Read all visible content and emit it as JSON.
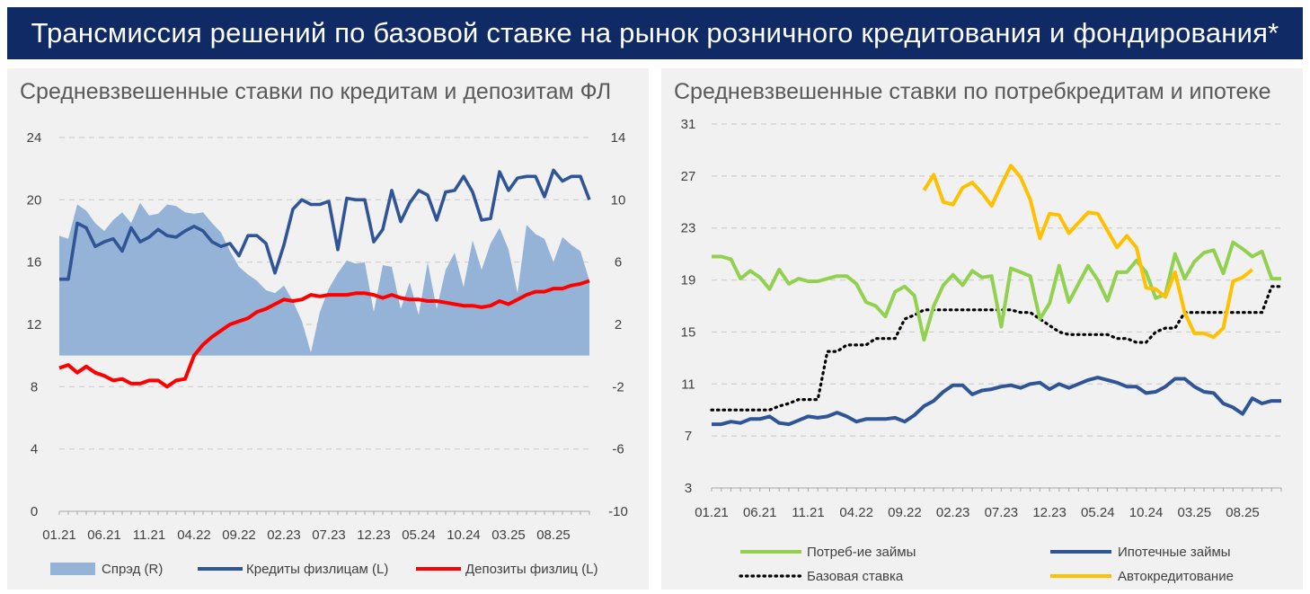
{
  "header": {
    "title": "Трансмиссия решений по базовой ставке на рынок розничного кредитования и фондирования*"
  },
  "colors": {
    "header_bg": "#0f2a64",
    "panel_bg": "#f1f1f1",
    "spread": "#95b3d7",
    "loans": "#2f5596",
    "deposits": "#ff0000",
    "consumer": "#92d050",
    "mortgage": "#2f5596",
    "base_rate": "#000000",
    "auto": "#ffc000"
  },
  "chart_data": [
    {
      "type": "line",
      "title": "Средневзвешенные ставки по кредитам и депозитам ФЛ",
      "y_left": {
        "lim": [
          0,
          24
        ],
        "ticks": [
          "0",
          "4",
          "8",
          "12",
          "16",
          "20",
          "24"
        ]
      },
      "y_right": {
        "lim": [
          -10,
          14
        ],
        "ticks": [
          "-10",
          "-6",
          "-2",
          "2",
          "6",
          "10",
          "14"
        ]
      },
      "x_labels": [
        "01.21",
        "06.21",
        "11.21",
        "04.22",
        "09.22",
        "02.23",
        "07.23",
        "12.23",
        "05.24",
        "10.24",
        "03.25",
        "08.25"
      ],
      "n_points": 60,
      "series": [
        {
          "name": "Спрэд (R)",
          "kind": "area",
          "axis": "right",
          "values": [
            7.7,
            7.5,
            9.7,
            9.3,
            8.5,
            8.0,
            8.7,
            9.2,
            8.5,
            9.8,
            9.0,
            9.1,
            9.7,
            9.6,
            9.2,
            9.1,
            9.2,
            8.5,
            7.9,
            6.7,
            5.7,
            5.2,
            4.8,
            4.2,
            4.0,
            4.5,
            3.5,
            2.2,
            0.2,
            2.8,
            4.3,
            5.3,
            6.1,
            5.9,
            6.0,
            2.8,
            5.8,
            5.7,
            3.0,
            4.7,
            2.6,
            6.0,
            3.0,
            5.5,
            6.6,
            4.4,
            7.4,
            5.5,
            7.2,
            8.2,
            6.8,
            4.0,
            8.4,
            7.8,
            7.5,
            6.0,
            7.6,
            7.1,
            6.7,
            4.8
          ]
        },
        {
          "name": "Кредиты физлицам (L)",
          "kind": "line",
          "axis": "left",
          "values": [
            14.9,
            14.9,
            18.5,
            18.2,
            17.0,
            17.3,
            17.5,
            16.7,
            18.2,
            17.3,
            17.6,
            18.1,
            17.7,
            17.6,
            18.0,
            18.3,
            18.0,
            17.3,
            17.0,
            17.2,
            16.4,
            17.7,
            17.7,
            17.2,
            15.3,
            17.1,
            19.4,
            20.0,
            19.7,
            19.7,
            19.9,
            16.8,
            20.1,
            20.0,
            20.0,
            17.3,
            18.1,
            20.6,
            18.6,
            19.8,
            20.6,
            20.3,
            18.7,
            20.5,
            20.6,
            21.5,
            20.5,
            18.7,
            18.8,
            21.8,
            20.6,
            21.4,
            21.5,
            21.5,
            20.2,
            21.9,
            21.2,
            21.5,
            21.5,
            20.0
          ]
        },
        {
          "name": "Депозиты физлиц (L)",
          "kind": "line",
          "axis": "left",
          "values": [
            9.2,
            9.4,
            8.9,
            9.3,
            8.9,
            8.7,
            8.4,
            8.5,
            8.2,
            8.2,
            8.4,
            8.4,
            8.0,
            8.4,
            8.5,
            10.0,
            10.7,
            11.2,
            11.6,
            12.0,
            12.2,
            12.4,
            12.8,
            13.0,
            13.3,
            13.6,
            13.5,
            13.6,
            13.9,
            13.8,
            13.9,
            13.9,
            13.9,
            14.0,
            14.0,
            13.9,
            13.7,
            13.9,
            13.7,
            13.6,
            13.6,
            13.5,
            13.5,
            13.4,
            13.3,
            13.2,
            13.2,
            13.1,
            13.2,
            13.5,
            13.3,
            13.6,
            13.9,
            14.1,
            14.1,
            14.3,
            14.3,
            14.5,
            14.6,
            14.8
          ]
        }
      ],
      "legend": [
        "Спрэд (R)",
        "Кредиты физлицам (L)",
        "Депозиты физлиц (L)"
      ]
    },
    {
      "type": "line",
      "title": "Средневзвешенные ставки по потребкредитам и ипотеке",
      "y_left": {
        "lim": [
          3,
          31
        ],
        "ticks": [
          "3",
          "7",
          "11",
          "15",
          "19",
          "23",
          "27",
          "31"
        ]
      },
      "x_labels": [
        "01.21",
        "06.21",
        "11.21",
        "04.22",
        "09.22",
        "02.23",
        "07.23",
        "12.23",
        "05.24",
        "10.24",
        "03.25",
        "08.25"
      ],
      "n_points": 60,
      "series": [
        {
          "name": "Потреб-ие займы",
          "values": [
            20.8,
            20.8,
            20.6,
            19.1,
            19.7,
            19.2,
            18.3,
            19.8,
            18.7,
            19.1,
            18.9,
            18.9,
            19.1,
            19.3,
            19.3,
            18.7,
            17.3,
            17.0,
            16.2,
            18.1,
            18.5,
            17.8,
            14.4,
            17.0,
            18.6,
            19.4,
            18.6,
            19.7,
            19.2,
            19.3,
            15.4,
            19.9,
            19.6,
            19.3,
            16.0,
            17.2,
            20.1,
            17.3,
            18.7,
            20.1,
            19.0,
            17.4,
            19.6,
            19.6,
            20.5,
            19.6,
            17.6,
            17.9,
            21.0,
            19.1,
            20.4,
            21.1,
            21.3,
            19.5,
            21.9,
            21.4,
            20.8,
            21.2,
            19.1,
            19.1
          ]
        },
        {
          "name": "Ипотечные займы",
          "values": [
            7.9,
            7.9,
            8.1,
            8.0,
            8.3,
            8.3,
            8.5,
            8.0,
            7.9,
            8.2,
            8.5,
            8.4,
            8.5,
            8.8,
            8.5,
            8.1,
            8.3,
            8.3,
            8.3,
            8.4,
            8.1,
            8.6,
            9.3,
            9.7,
            10.4,
            10.9,
            10.9,
            10.2,
            10.5,
            10.6,
            10.8,
            10.9,
            10.7,
            11.0,
            11.1,
            10.6,
            11.0,
            10.7,
            11.0,
            11.3,
            11.5,
            11.3,
            11.1,
            10.8,
            10.8,
            10.3,
            10.4,
            10.8,
            11.4,
            11.4,
            10.8,
            10.4,
            10.3,
            9.5,
            9.2,
            8.7,
            9.9,
            9.5,
            9.7,
            9.7
          ]
        },
        {
          "name": "Базовая ставка",
          "values": [
            9.0,
            9.0,
            9.0,
            9.0,
            9.0,
            9.0,
            9.0,
            9.3,
            9.5,
            9.8,
            9.8,
            9.8,
            13.5,
            13.5,
            14.0,
            14.0,
            14.0,
            14.5,
            14.5,
            14.5,
            16.0,
            16.3,
            16.7,
            16.7,
            16.7,
            16.7,
            16.7,
            16.7,
            16.7,
            16.7,
            16.7,
            16.7,
            16.5,
            16.5,
            16.0,
            15.5,
            15.0,
            14.8,
            14.8,
            14.8,
            14.8,
            14.8,
            14.5,
            14.5,
            14.2,
            14.2,
            15.0,
            15.3,
            15.3,
            16.5,
            16.5,
            16.5,
            16.5,
            16.5,
            16.5,
            16.5,
            16.5,
            16.5,
            18.5,
            18.5
          ]
        },
        {
          "name": "Автокредитование",
          "values": [
            null,
            null,
            null,
            null,
            null,
            null,
            null,
            null,
            null,
            null,
            null,
            null,
            null,
            null,
            null,
            null,
            null,
            null,
            null,
            null,
            null,
            null,
            25.9,
            27.1,
            25.0,
            24.8,
            26.1,
            26.5,
            25.7,
            24.7,
            26.3,
            27.8,
            26.9,
            25.2,
            22.2,
            24.1,
            24.0,
            22.6,
            23.4,
            24.2,
            24.1,
            22.8,
            21.5,
            22.4,
            21.5,
            18.4,
            18.3,
            17.7,
            19.6,
            16.5,
            14.9,
            14.9,
            14.6,
            15.3,
            18.9,
            19.2,
            19.8,
            null,
            null,
            null
          ]
        }
      ],
      "legend": [
        "Потреб-ие займы",
        "Ипотечные займы",
        "Базовая ставка",
        "Автокредитование"
      ]
    }
  ]
}
